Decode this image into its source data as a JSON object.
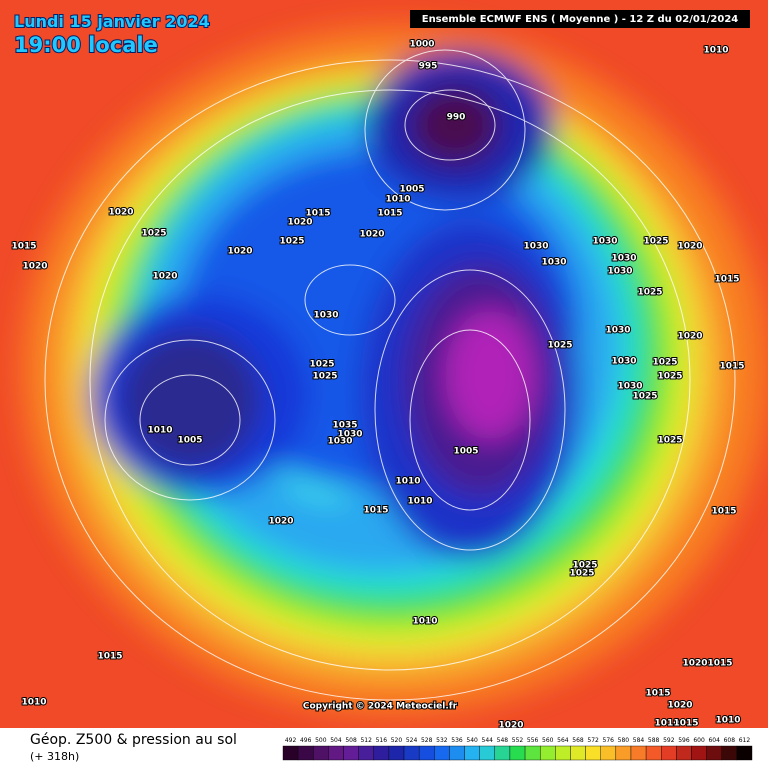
{
  "header": {
    "date": "Lundi 15 janvier 2024",
    "time": "19:00 locale",
    "model": "Ensemble ECMWF ENS ( Moyenne ) - 12 Z du 02/01/2024"
  },
  "isobar_labels": [
    1000,
    995,
    990,
    1010,
    1005,
    1010,
    1015,
    1015,
    1020,
    1020,
    1025,
    1020,
    1020,
    1025,
    1020,
    1015,
    1020,
    1030,
    1025,
    1025,
    1035,
    1030,
    1030,
    1010,
    1005,
    1020,
    1015,
    1010,
    1010,
    1005,
    1025,
    1030,
    1030,
    1030,
    1025,
    1020,
    1015,
    1020,
    1015,
    1025,
    1015,
    1025,
    1025,
    1010,
    1015,
    1010,
    1020,
    1020,
    1015,
    1015,
    1020,
    1010,
    1010,
    1015,
    1030,
    1030,
    1025,
    1030,
    1030,
    1030,
    1025,
    1025,
    1025
  ],
  "copyright": "Copyright © 2024 Meteociel.fr",
  "footer": {
    "title": "Géop. Z500 & pression au sol",
    "lead": "(+ 318h)",
    "scale": [
      492,
      496,
      500,
      504,
      508,
      512,
      516,
      520,
      524,
      528,
      532,
      536,
      540,
      544,
      548,
      552,
      556,
      560,
      564,
      568,
      572,
      576,
      580,
      584,
      588,
      592,
      596,
      600,
      604,
      608,
      612
    ]
  }
}
